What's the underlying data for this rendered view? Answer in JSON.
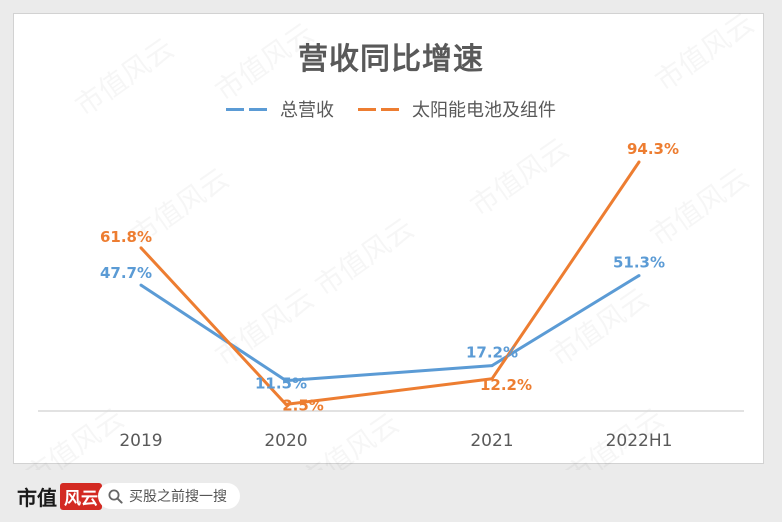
{
  "watermark": {
    "text": "市值风云"
  },
  "chart_data": {
    "type": "line",
    "title": "营收同比增速",
    "categories": [
      "2019",
      "2020",
      "2021",
      "2022H1"
    ],
    "series": [
      {
        "name": "总营收",
        "values": [
          47.7,
          11.5,
          17.2,
          51.3
        ],
        "labels": [
          "47.7%",
          "11.5%",
          "17.2%",
          "51.3%"
        ],
        "color": "#5b9bd5"
      },
      {
        "name": "太阳能电池及组件",
        "values": [
          61.8,
          2.5,
          12.2,
          94.3
        ],
        "labels": [
          "61.8%",
          "2.5%",
          "12.2%",
          "94.3%"
        ],
        "color": "#ed7d31"
      }
    ],
    "ylim": [
      0,
      100
    ],
    "grid": false,
    "legend_position": "top"
  },
  "footer": {
    "logo_text": "市值",
    "logo_mark": "风云",
    "search_icon": "search-icon",
    "search_text": "买股之前搜一搜"
  }
}
